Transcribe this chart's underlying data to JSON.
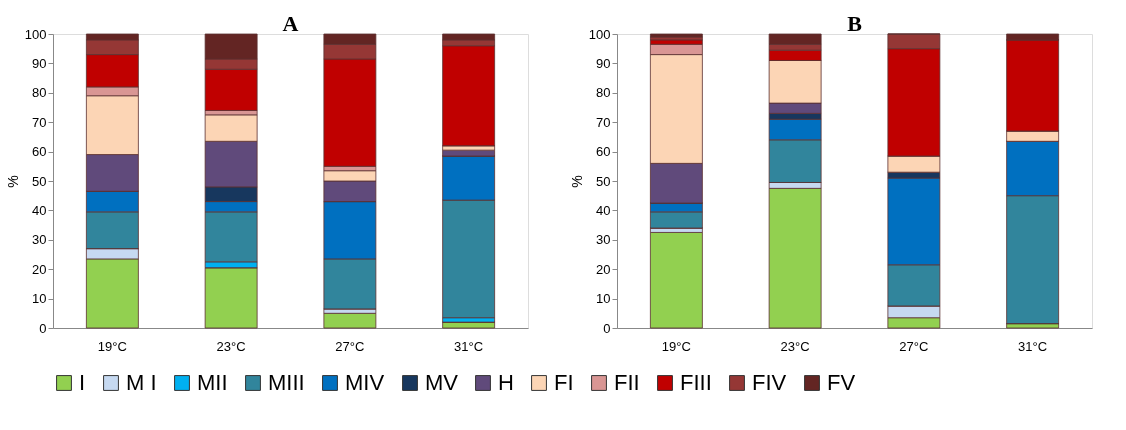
{
  "chart_data": [
    {
      "type": "bar",
      "stacked": true,
      "title": "A",
      "ylabel": "%",
      "categories": [
        "19°C",
        "23°C",
        "27°C",
        "31°C"
      ],
      "ylim": [
        0,
        100
      ],
      "yticks": [
        0,
        10,
        20,
        30,
        40,
        50,
        60,
        70,
        80,
        90,
        100
      ],
      "grid": false,
      "legend": "bottom",
      "series": [
        {
          "name": "I",
          "color": "#92d050",
          "values": [
            23.5,
            20.5,
            5,
            2
          ]
        },
        {
          "name": "M I",
          "color": "#c6d9f1",
          "values": [
            3.5,
            0,
            1.5,
            0
          ]
        },
        {
          "name": "MII",
          "color": "#00b0f0",
          "values": [
            0,
            2,
            0,
            1.5
          ]
        },
        {
          "name": "MIII",
          "color": "#31859c",
          "values": [
            12.5,
            17,
            17,
            40
          ]
        },
        {
          "name": "MIV",
          "color": "#0070c0",
          "values": [
            7,
            3.5,
            19.5,
            15
          ]
        },
        {
          "name": "MV",
          "color": "#17375e",
          "values": [
            0,
            5,
            0,
            0
          ]
        },
        {
          "name": "H",
          "color": "#604a7b",
          "values": [
            12.5,
            15.5,
            7,
            2
          ]
        },
        {
          "name": "FI",
          "color": "#fcd5b5",
          "values": [
            20,
            9,
            3.5,
            1.5
          ]
        },
        {
          "name": "FII",
          "color": "#d99694",
          "values": [
            3,
            1.5,
            1.5,
            0
          ]
        },
        {
          "name": "FIII",
          "color": "#c00000",
          "values": [
            11,
            14,
            36.5,
            34
          ]
        },
        {
          "name": "FIV",
          "color": "#953735",
          "values": [
            5,
            3.5,
            5,
            2
          ]
        },
        {
          "name": "FV",
          "color": "#632523",
          "values": [
            2,
            8.5,
            3.5,
            2
          ]
        }
      ]
    },
    {
      "type": "bar",
      "stacked": true,
      "title": "B",
      "ylabel": "%",
      "categories": [
        "19°C",
        "23°C",
        "27°C",
        "31°C"
      ],
      "ylim": [
        0,
        100
      ],
      "yticks": [
        0,
        10,
        20,
        30,
        40,
        50,
        60,
        70,
        80,
        90,
        100
      ],
      "grid": false,
      "legend": "bottom",
      "series": [
        {
          "name": "I",
          "color": "#92d050",
          "values": [
            32.5,
            47.5,
            3.5,
            1.5
          ]
        },
        {
          "name": "M I",
          "color": "#c6d9f1",
          "values": [
            1.5,
            2,
            4,
            0
          ]
        },
        {
          "name": "MII",
          "color": "#00b0f0",
          "values": [
            0,
            0,
            0,
            0
          ]
        },
        {
          "name": "MIII",
          "color": "#31859c",
          "values": [
            5.5,
            14.5,
            14,
            43.5
          ]
        },
        {
          "name": "MIV",
          "color": "#0070c0",
          "values": [
            3,
            7,
            29.5,
            18.5
          ]
        },
        {
          "name": "MV",
          "color": "#17375e",
          "values": [
            0,
            2,
            2,
            0
          ]
        },
        {
          "name": "H",
          "color": "#604a7b",
          "values": [
            13.5,
            3.5,
            0,
            0
          ]
        },
        {
          "name": "FI",
          "color": "#fcd5b5",
          "values": [
            37,
            14.5,
            5.5,
            3.5
          ]
        },
        {
          "name": "FII",
          "color": "#d99694",
          "values": [
            3.5,
            0,
            0,
            0
          ]
        },
        {
          "name": "FIII",
          "color": "#c00000",
          "values": [
            1.5,
            3.5,
            36.5,
            31
          ]
        },
        {
          "name": "FIV",
          "color": "#953735",
          "values": [
            1,
            2,
            5,
            0
          ]
        },
        {
          "name": "FV",
          "color": "#632523",
          "values": [
            1,
            3.5,
            0,
            2
          ]
        }
      ]
    }
  ]
}
